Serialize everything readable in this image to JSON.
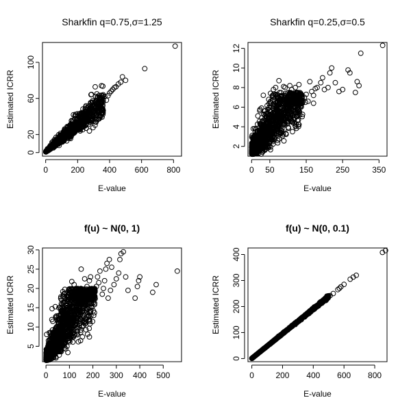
{
  "chart_data": [
    {
      "type": "scatter",
      "title": "Sharkfin q=0.75,σ=1.25",
      "title_bold": false,
      "xlabel": "E-value",
      "ylabel": "Estimated ICRR",
      "xlim": [
        -20,
        850
      ],
      "ylim": [
        -4,
        122
      ],
      "xticks": [
        0,
        200,
        400,
        600,
        800
      ],
      "yticks": [
        0,
        20,
        60,
        100
      ],
      "cloud": {
        "slope": 0.15,
        "intercept": 0.8,
        "spread": 0.16,
        "x_lo": 1,
        "x_hi": 360,
        "n": 1100,
        "skew": 1.6
      },
      "points": [
        [
          620,
          93
        ],
        [
          810,
          118
        ],
        [
          480,
          84
        ],
        [
          470,
          78
        ],
        [
          455,
          76
        ],
        [
          430,
          72
        ],
        [
          420,
          70
        ],
        [
          400,
          66
        ],
        [
          390,
          63
        ],
        [
          360,
          64
        ],
        [
          380,
          58
        ],
        [
          345,
          60
        ],
        [
          330,
          56
        ],
        [
          500,
          80
        ],
        [
          440,
          73
        ],
        [
          410,
          68
        ],
        [
          370,
          62
        ]
      ]
    },
    {
      "type": "scatter",
      "title": "Sharkfin q=0.25,σ=0.5",
      "title_bold": false,
      "xlabel": "E-value",
      "ylabel": "Estimated ICRR",
      "xlim": [
        -10,
        372
      ],
      "ylim": [
        1.0,
        12.6
      ],
      "xticks": [
        0,
        50,
        150,
        250,
        350
      ],
      "yticks": [
        2,
        4,
        6,
        8,
        10,
        12
      ],
      "cloud": {
        "slope": 0.05,
        "intercept": 1.4,
        "spread": 0.3,
        "x_lo": 0.5,
        "x_hi": 140,
        "n": 1400,
        "skew": 1.8,
        "cap": 7.5
      },
      "points": [
        [
          360,
          12.3
        ],
        [
          300,
          11.5
        ],
        [
          295,
          8.2
        ],
        [
          290,
          8.6
        ],
        [
          285,
          7.5
        ],
        [
          270,
          9.5
        ],
        [
          265,
          9.8
        ],
        [
          250,
          7.8
        ],
        [
          230,
          8.5
        ],
        [
          220,
          10.0
        ],
        [
          215,
          9.5
        ],
        [
          210,
          8.0
        ],
        [
          200,
          7.8
        ],
        [
          195,
          9.0
        ],
        [
          190,
          8.5
        ],
        [
          180,
          8.0
        ],
        [
          175,
          7.9
        ],
        [
          170,
          7.2
        ],
        [
          165,
          7.6
        ],
        [
          160,
          8.6
        ],
        [
          155,
          6.6
        ],
        [
          150,
          7.3
        ],
        [
          148,
          6.5
        ],
        [
          145,
          7.0
        ],
        [
          130,
          8.3
        ],
        [
          125,
          7.5
        ],
        [
          120,
          8.0
        ],
        [
          115,
          7.1
        ],
        [
          110,
          7.8
        ],
        [
          105,
          8.2
        ],
        [
          100,
          6.6
        ],
        [
          92,
          8.0
        ],
        [
          88,
          8.1
        ],
        [
          75,
          8.7
        ],
        [
          66,
          8.0
        ],
        [
          60,
          7.8
        ],
        [
          170,
          6.4
        ],
        [
          240,
          7.6
        ]
      ]
    },
    {
      "type": "scatter",
      "title": "f(u) ~ N(0, 1)",
      "title_bold": true,
      "xlabel": "E-value",
      "ylabel": "Estimated ICRR",
      "xlim": [
        -15,
        578
      ],
      "ylim": [
        1.0,
        30.5
      ],
      "xticks": [
        0,
        100,
        200,
        300,
        400,
        500
      ],
      "yticks": [
        5,
        10,
        15,
        20,
        25,
        30
      ],
      "cloud": {
        "slope": 0.11,
        "intercept": 1.6,
        "spread": 0.35,
        "x_lo": 0.5,
        "x_hi": 210,
        "n": 1800,
        "skew": 1.7,
        "cap": 20
      },
      "points": [
        [
          560,
          24.5
        ],
        [
          470,
          21
        ],
        [
          455,
          19
        ],
        [
          400,
          23
        ],
        [
          395,
          22
        ],
        [
          390,
          20.5
        ],
        [
          340,
          23
        ],
        [
          330,
          29.5
        ],
        [
          320,
          29
        ],
        [
          315,
          27.5
        ],
        [
          310,
          24
        ],
        [
          300,
          22.5
        ],
        [
          290,
          21
        ],
        [
          280,
          25.5
        ],
        [
          270,
          27.5
        ],
        [
          260,
          26.5
        ],
        [
          255,
          25
        ],
        [
          250,
          22
        ],
        [
          245,
          20
        ],
        [
          240,
          18.5
        ],
        [
          230,
          24.5
        ],
        [
          225,
          21.5
        ],
        [
          220,
          23
        ],
        [
          215,
          20.5
        ],
        [
          205,
          19.5
        ],
        [
          190,
          23
        ],
        [
          185,
          22
        ],
        [
          175,
          20.5
        ],
        [
          165,
          22.5
        ],
        [
          150,
          25
        ],
        [
          135,
          20
        ],
        [
          120,
          21
        ],
        [
          110,
          21.8
        ],
        [
          380,
          17.5
        ],
        [
          350,
          19.5
        ],
        [
          275,
          19.5
        ],
        [
          265,
          17.5
        ]
      ]
    },
    {
      "type": "scatter",
      "title": "f(u) ~ N(0, 0.1)",
      "title_bold": true,
      "xlabel": "E-value",
      "ylabel": "Estimated ICRR",
      "xlim": [
        -25,
        880
      ],
      "ylim": [
        -12,
        425
      ],
      "xticks": [
        0,
        200,
        400,
        600,
        800
      ],
      "yticks": [
        0,
        100,
        200,
        300,
        400
      ],
      "cloud": {
        "slope": 0.475,
        "intercept": 0.5,
        "spread": 0.01,
        "x_lo": 0.5,
        "x_hi": 500,
        "n": 900,
        "skew": 1.3
      },
      "points": [
        [
          870,
          415
        ],
        [
          850,
          408
        ],
        [
          680,
          320
        ],
        [
          660,
          313
        ],
        [
          640,
          305
        ],
        [
          600,
          285
        ],
        [
          580,
          276
        ],
        [
          570,
          270
        ],
        [
          560,
          265
        ],
        [
          530,
          250
        ],
        [
          510,
          242
        ],
        [
          490,
          233
        ],
        [
          475,
          226
        ],
        [
          460,
          219
        ]
      ]
    }
  ]
}
